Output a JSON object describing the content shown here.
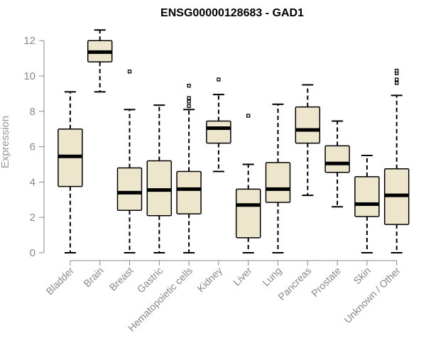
{
  "chart_data": {
    "type": "boxplot",
    "title": "ENSG00000128683 - GAD1",
    "xlabel": "",
    "ylabel": "Expression",
    "ylim": [
      0,
      12
    ],
    "yticks": [
      "0",
      "2",
      "4",
      "6",
      "8",
      "10",
      "12"
    ],
    "grid": false,
    "legend": "none",
    "colors": {
      "box_fill": "#ede6cc",
      "box_stroke": "#000000",
      "axis": "#888888"
    },
    "categories": [
      "Bladder",
      "Brain",
      "Breast",
      "Gastric",
      "Hematopoietic cells",
      "Kidney",
      "Liver",
      "Lung",
      "Pancreas",
      "Prostate",
      "Skin",
      "Unknown / Other"
    ],
    "boxes": [
      {
        "category": "Bladder",
        "whisker_low": 0,
        "q1": 3.75,
        "median": 5.45,
        "q3": 7.0,
        "whisker_high": 9.1,
        "outliers": []
      },
      {
        "category": "Brain",
        "whisker_low": 9.1,
        "q1": 10.8,
        "median": 11.35,
        "q3": 12.0,
        "whisker_high": 12.6,
        "outliers": []
      },
      {
        "category": "Breast",
        "whisker_low": 0,
        "q1": 2.4,
        "median": 3.4,
        "q3": 4.8,
        "whisker_high": 8.1,
        "outliers": [
          10.25
        ]
      },
      {
        "category": "Gastric",
        "whisker_low": 0,
        "q1": 2.1,
        "median": 3.55,
        "q3": 5.2,
        "whisker_high": 8.35,
        "outliers": []
      },
      {
        "category": "Hematopoietic cells",
        "whisker_low": 0,
        "q1": 2.2,
        "median": 3.6,
        "q3": 4.6,
        "whisker_high": 8.1,
        "outliers": [
          8.3,
          8.55,
          8.75,
          9.45
        ]
      },
      {
        "category": "Kidney",
        "whisker_low": 4.6,
        "q1": 6.2,
        "median": 7.05,
        "q3": 7.45,
        "whisker_high": 8.95,
        "outliers": [
          9.8
        ]
      },
      {
        "category": "Liver",
        "whisker_low": 0,
        "q1": 0.85,
        "median": 2.7,
        "q3": 3.6,
        "whisker_high": 5.0,
        "outliers": [
          7.75
        ]
      },
      {
        "category": "Lung",
        "whisker_low": 0,
        "q1": 2.85,
        "median": 3.6,
        "q3": 5.1,
        "whisker_high": 8.4,
        "outliers": []
      },
      {
        "category": "Pancreas",
        "whisker_low": 3.25,
        "q1": 6.2,
        "median": 6.95,
        "q3": 8.25,
        "whisker_high": 9.5,
        "outliers": []
      },
      {
        "category": "Prostate",
        "whisker_low": 2.6,
        "q1": 4.55,
        "median": 5.05,
        "q3": 6.05,
        "whisker_high": 7.45,
        "outliers": []
      },
      {
        "category": "Skin",
        "whisker_low": 0,
        "q1": 2.05,
        "median": 2.75,
        "q3": 4.3,
        "whisker_high": 5.5,
        "outliers": []
      },
      {
        "category": "Unknown / Other",
        "whisker_low": 0,
        "q1": 1.6,
        "median": 3.25,
        "q3": 4.75,
        "whisker_high": 8.9,
        "outliers": [
          9.6,
          9.8,
          10.15,
          10.3
        ]
      }
    ]
  }
}
